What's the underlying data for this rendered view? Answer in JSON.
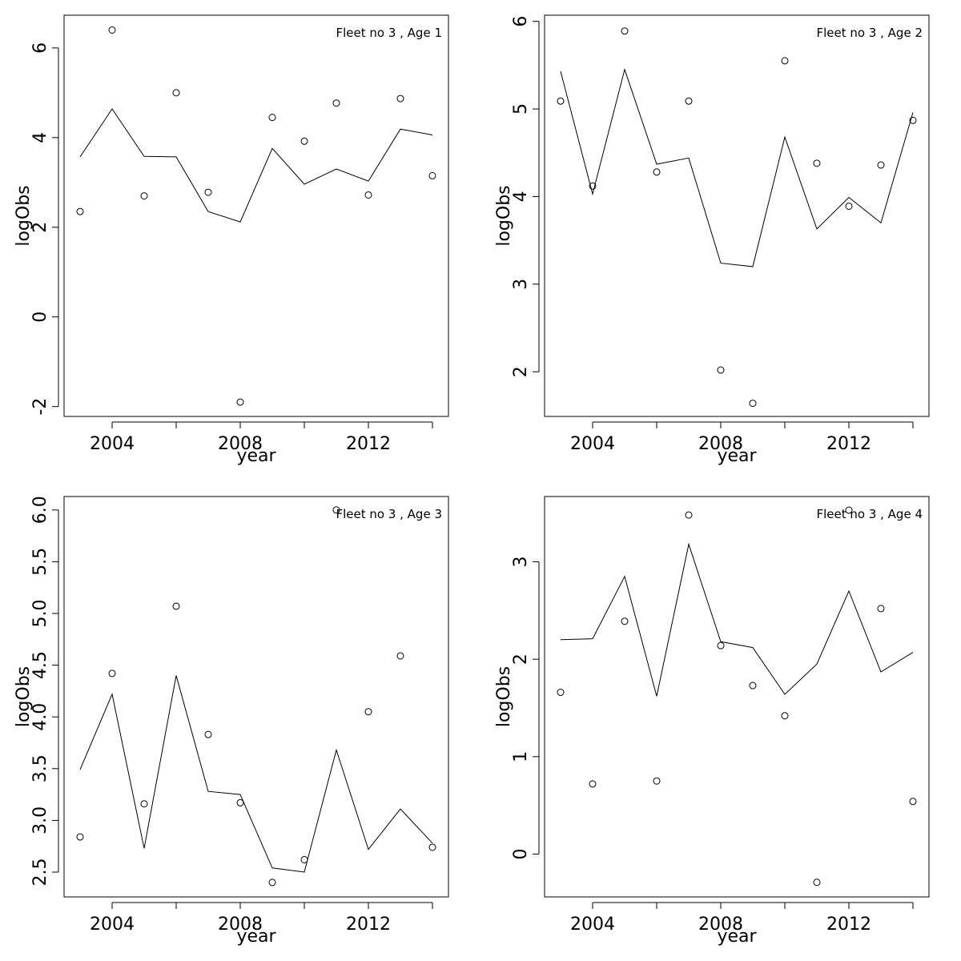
{
  "chart_data": [
    {
      "type": "line",
      "title": "Fleet no 3 , Age 1",
      "xlabel": "year",
      "ylabel": "logObs",
      "xlim": [
        2002.5,
        2014.5
      ],
      "ylim": [
        -2.22,
        6.73
      ],
      "xticks": [
        2004,
        2006,
        2008,
        2010,
        2012,
        2014
      ],
      "xtick_labels": [
        "2004",
        "",
        "2008",
        "",
        "2012",
        ""
      ],
      "yticks": [
        -2,
        0,
        2,
        4,
        6
      ],
      "ytick_labels": [
        "-2",
        "0",
        "2",
        "4",
        "6"
      ],
      "x": [
        2003,
        2004,
        2005,
        2006,
        2007,
        2008,
        2009,
        2010,
        2011,
        2012,
        2013,
        2014
      ],
      "series": [
        {
          "style": "points",
          "values": [
            2.35,
            6.4,
            2.7,
            5.0,
            2.78,
            -1.9,
            4.45,
            3.92,
            4.77,
            2.72,
            4.87,
            3.15
          ]
        },
        {
          "style": "line",
          "values": [
            3.57,
            4.64,
            3.58,
            3.57,
            2.35,
            2.12,
            3.76,
            2.96,
            3.3,
            3.03,
            4.19,
            4.06
          ]
        }
      ],
      "grid": false
    },
    {
      "type": "line",
      "title": "Fleet no 3 , Age 2",
      "xlabel": "year",
      "ylabel": "logObs",
      "xlim": [
        2002.5,
        2014.5
      ],
      "ylim": [
        1.49,
        6.07
      ],
      "xticks": [
        2004,
        2006,
        2008,
        2010,
        2012,
        2014
      ],
      "xtick_labels": [
        "2004",
        "",
        "2008",
        "",
        "2012",
        ""
      ],
      "yticks": [
        2,
        3,
        4,
        5,
        6
      ],
      "ytick_labels": [
        "2",
        "3",
        "4",
        "5",
        "6"
      ],
      "x": [
        2003,
        2004,
        2005,
        2006,
        2007,
        2008,
        2009,
        2010,
        2011,
        2012,
        2013,
        2014
      ],
      "series": [
        {
          "style": "points",
          "values": [
            5.09,
            4.12,
            5.89,
            4.28,
            5.09,
            2.02,
            1.64,
            5.55,
            4.38,
            3.89,
            4.36,
            4.87
          ]
        },
        {
          "style": "line",
          "values": [
            5.43,
            4.03,
            5.45,
            4.37,
            4.44,
            3.24,
            3.2,
            4.68,
            3.63,
            3.99,
            3.7,
            4.96
          ]
        }
      ],
      "grid": false
    },
    {
      "type": "line",
      "title": "Fleet no 3 , Age 3",
      "xlabel": "year",
      "ylabel": "logObs",
      "xlim": [
        2002.5,
        2014.5
      ],
      "ylim": [
        2.26,
        6.13
      ],
      "xticks": [
        2004,
        2006,
        2008,
        2010,
        2012,
        2014
      ],
      "xtick_labels": [
        "2004",
        "",
        "2008",
        "",
        "2012",
        ""
      ],
      "yticks": [
        2.5,
        3.0,
        3.5,
        4.0,
        4.5,
        5.0,
        5.5,
        6.0
      ],
      "ytick_labels": [
        "2.5",
        "3.0",
        "3.5",
        "4.0",
        "4.5",
        "5.0",
        "5.5",
        "6.0"
      ],
      "x": [
        2003,
        2004,
        2005,
        2006,
        2007,
        2008,
        2009,
        2010,
        2011,
        2012,
        2013,
        2014
      ],
      "series": [
        {
          "style": "points",
          "values": [
            2.84,
            4.42,
            3.16,
            5.07,
            3.83,
            3.17,
            2.4,
            2.62,
            6.0,
            4.05,
            4.59,
            2.74
          ]
        },
        {
          "style": "line",
          "values": [
            3.49,
            4.22,
            2.73,
            4.4,
            3.28,
            3.25,
            2.54,
            2.5,
            3.68,
            2.72,
            3.11,
            2.78
          ]
        }
      ],
      "grid": false
    },
    {
      "type": "line",
      "title": "Fleet no 3 , Age 4",
      "xlabel": "year",
      "ylabel": "logObs",
      "xlim": [
        2002.5,
        2014.5
      ],
      "ylim": [
        -0.44,
        3.67
      ],
      "xticks": [
        2004,
        2006,
        2008,
        2010,
        2012,
        2014
      ],
      "xtick_labels": [
        "2004",
        "",
        "2008",
        "",
        "2012",
        ""
      ],
      "yticks": [
        0,
        1,
        2,
        3
      ],
      "ytick_labels": [
        "0",
        "1",
        "2",
        "3"
      ],
      "x": [
        2003,
        2004,
        2005,
        2006,
        2007,
        2008,
        2009,
        2010,
        2011,
        2012,
        2013,
        2014
      ],
      "series": [
        {
          "style": "points",
          "values": [
            1.66,
            0.72,
            2.39,
            0.75,
            3.48,
            2.14,
            1.73,
            1.42,
            -0.29,
            3.53,
            2.52,
            0.54
          ]
        },
        {
          "style": "line",
          "values": [
            2.2,
            2.21,
            2.85,
            1.62,
            3.18,
            2.18,
            2.12,
            1.64,
            1.95,
            2.7,
            1.87,
            2.07
          ]
        }
      ],
      "grid": false
    }
  ]
}
